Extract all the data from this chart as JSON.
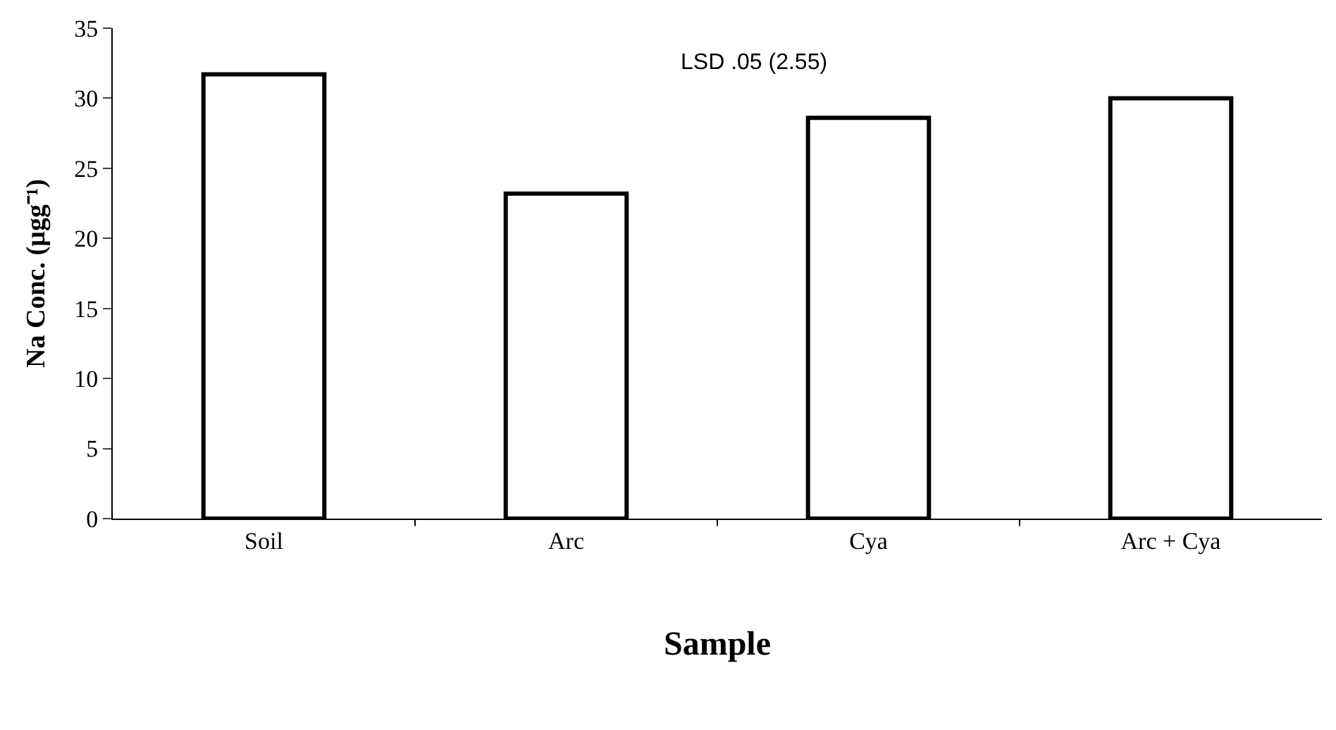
{
  "chart_data": {
    "type": "bar",
    "xlabel": "Sample",
    "ylabel": "Na Conc. (µgg⁻¹)",
    "categories": [
      "Soil",
      "Arc",
      "Cya",
      "Arc + Cya"
    ],
    "values": [
      31.7,
      23.2,
      28.6,
      30.0
    ],
    "color": "#ffffff",
    "ylim": [
      0,
      35
    ],
    "yticks": [
      0,
      5,
      10,
      15,
      20,
      25,
      30,
      35
    ],
    "annotations": [
      "LSD .05 (2.55)"
    ]
  }
}
